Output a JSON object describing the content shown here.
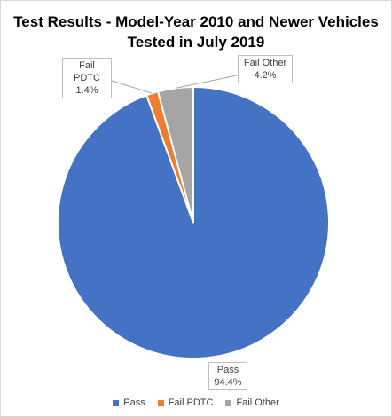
{
  "chart_data": {
    "type": "pie",
    "title_lines": [
      "Test Results - Model-Year 2010 and Newer Vehicles",
      "Tested in July 2019"
    ],
    "slices": [
      {
        "name": "Pass",
        "value": 94.4,
        "label": "94.4%",
        "color": "#4472C4"
      },
      {
        "name": "Fail PDTC",
        "value": 1.4,
        "label": "1.4%",
        "color": "#ED7D31"
      },
      {
        "name": "Fail Other",
        "value": 4.2,
        "label": "4.2%",
        "color": "#A5A5A5"
      }
    ],
    "legend_position": "bottom",
    "start_angle": "12 o'clock"
  }
}
